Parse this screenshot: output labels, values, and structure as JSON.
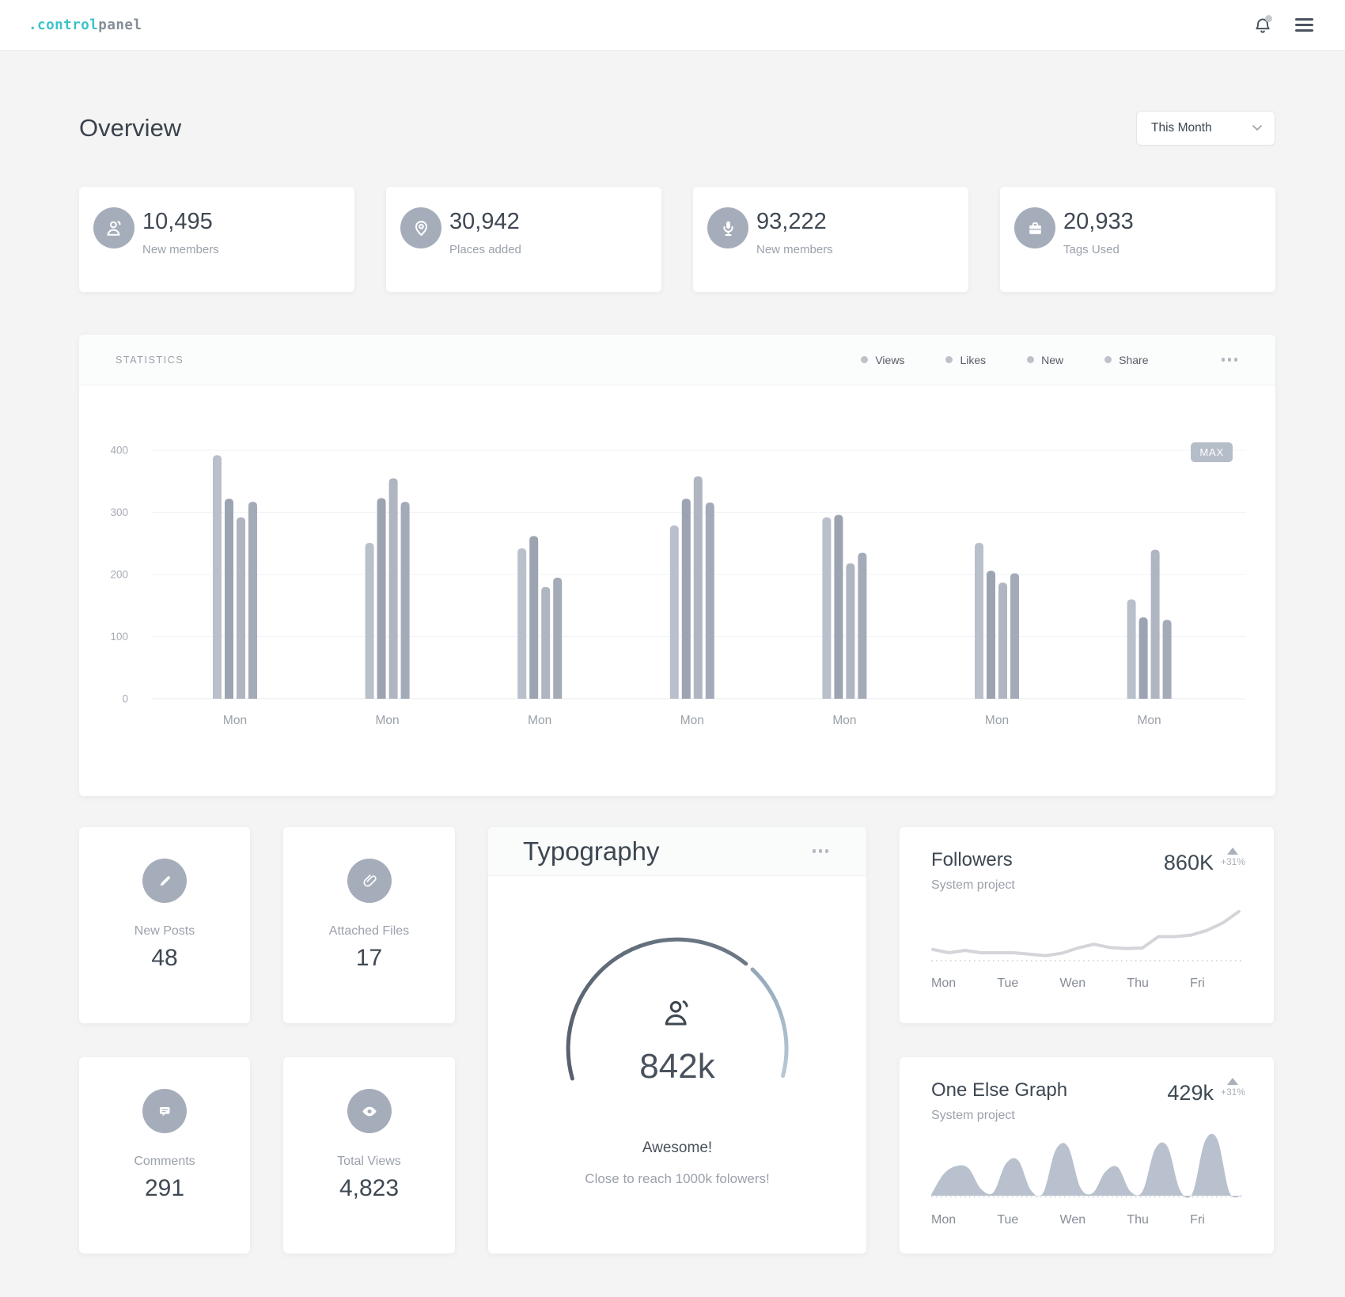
{
  "header": {
    "logo_accent": ".control",
    "logo_rest": "panel",
    "icons": [
      "bell-icon",
      "menu-icon"
    ]
  },
  "colors": {
    "accent_teal": "#3cc3c8",
    "icon_circle": "#a6adba",
    "badge": "#b5bdc9",
    "line": "#d3d5d9",
    "area": "#b8c1cd"
  },
  "page": {
    "title": "Overview",
    "period_selector": "This Month"
  },
  "stat_cards": [
    {
      "icon": "members-icon",
      "value": "10,495",
      "label": "New members"
    },
    {
      "icon": "location-icon",
      "value": "30,942",
      "label": "Places added"
    },
    {
      "icon": "microphone-icon",
      "value": "93,222",
      "label": "New members"
    },
    {
      "icon": "briefcase-icon",
      "value": "20,933",
      "label": "Tags Used"
    }
  ],
  "statistics": {
    "title": "STATISTICS"
  },
  "chart_data": [
    {
      "type": "bar",
      "title": "STATISTICS",
      "categories": [
        "Mon",
        "Mon",
        "Mon",
        "Mon",
        "Mon",
        "Mon",
        "Mon"
      ],
      "series": [
        {
          "name": "Views",
          "values": [
            392,
            251,
            242,
            279,
            292,
            251,
            160
          ]
        },
        {
          "name": "Likes",
          "values": [
            322,
            323,
            262,
            322,
            296,
            206,
            131
          ]
        },
        {
          "name": "New",
          "values": [
            292,
            355,
            180,
            358,
            218,
            187,
            240
          ]
        },
        {
          "name": "Share",
          "values": [
            317,
            317,
            195,
            316,
            235,
            202,
            127
          ]
        }
      ],
      "series_colors": [
        "#b9c0cb",
        "#9ca4b2",
        "#afb5c1",
        "#a3abb8"
      ],
      "ylim": [
        0,
        400
      ],
      "yticks": [
        0,
        100,
        200,
        300,
        400
      ],
      "grid": true,
      "legend_position": "top-right",
      "annotation": "MAX"
    },
    {
      "type": "line",
      "x_labels": [
        "Mon",
        "Tue",
        "Wen",
        "Thu",
        "Fri"
      ],
      "values": [
        17,
        10,
        15,
        10,
        10,
        10,
        7,
        4,
        9,
        20,
        28,
        21,
        19,
        20,
        44,
        44,
        47,
        57,
        73,
        97
      ],
      "ylim": [
        0,
        100
      ],
      "baseline": "dotted"
    },
    {
      "type": "area",
      "x_labels": [
        "Mon",
        "Tue",
        "Wen",
        "Thu",
        "Fri"
      ],
      "values": [
        2,
        38,
        52,
        48,
        12,
        6,
        56,
        62,
        10,
        5,
        80,
        86,
        14,
        5,
        42,
        50,
        8,
        8,
        82,
        86,
        10,
        4,
        95,
        99,
        5,
        1
      ],
      "ylim": [
        0,
        100
      ],
      "baseline": "dotted"
    }
  ],
  "mini_cards": [
    {
      "icon": "pencil-icon",
      "label": "New Posts",
      "value": "48"
    },
    {
      "icon": "paperclip-icon",
      "label": "Attached Files",
      "value": "17"
    },
    {
      "icon": "comment-icon",
      "label": "Comments",
      "value": "291"
    },
    {
      "icon": "eye-icon",
      "label": "Total Views",
      "value": "4,823"
    }
  ],
  "typography_card": {
    "title": "Typography",
    "value": "842k",
    "headline": "Awesome!",
    "subtext": "Close to reach 1000k folowers!"
  },
  "followers_card": {
    "title": "Followers",
    "subtitle": "System project",
    "value": "860K",
    "delta": "+31%"
  },
  "one_else_card": {
    "title": "One Else Graph",
    "subtitle": "System project",
    "value": "429k",
    "delta": "+31%"
  }
}
